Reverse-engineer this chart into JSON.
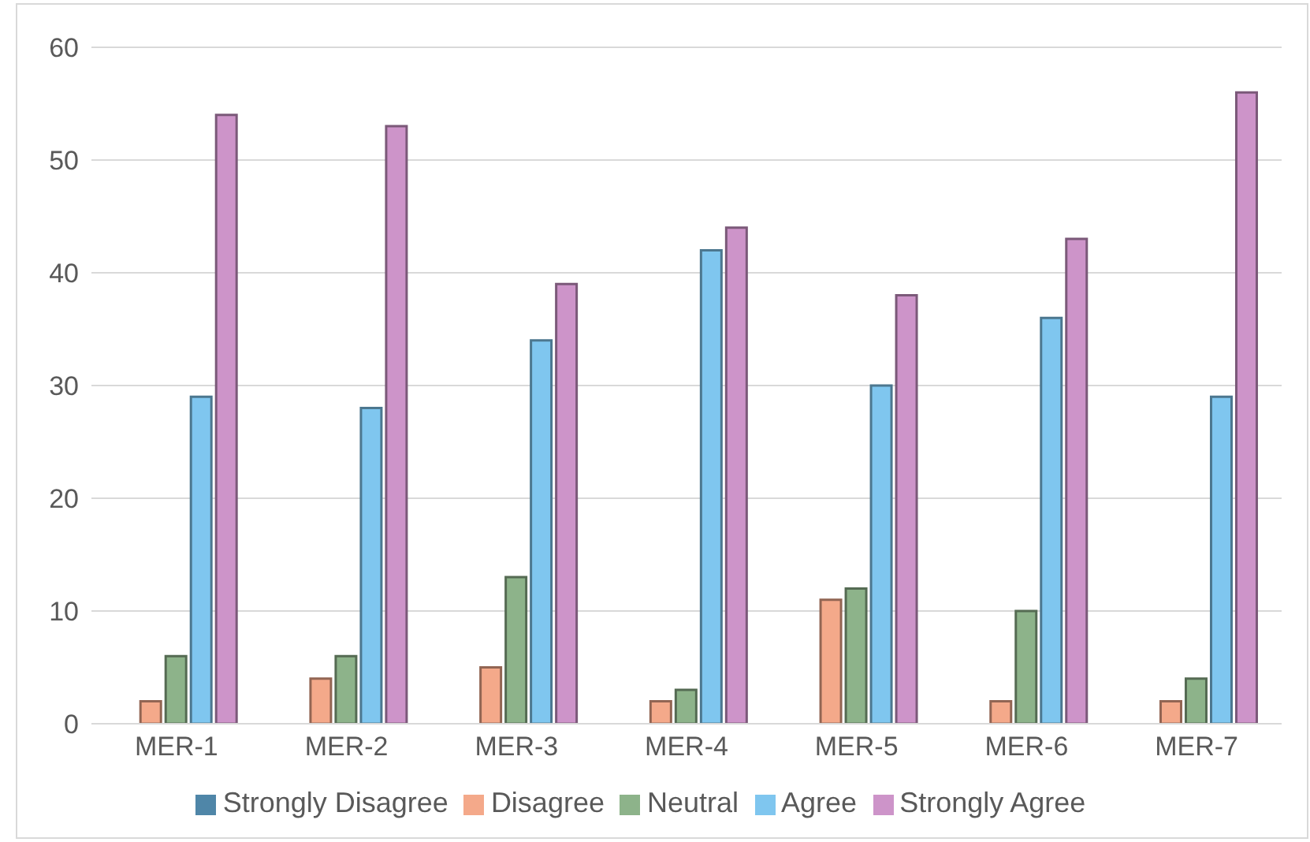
{
  "chart_data": {
    "type": "bar",
    "categories": [
      "MER-1",
      "MER-2",
      "MER-3",
      "MER-4",
      "MER-5",
      "MER-6",
      "MER-7"
    ],
    "series": [
      {
        "name": "Strongly Disagree",
        "color": "#4f86a8",
        "values": [
          0,
          0,
          0,
          0,
          0,
          0,
          0
        ]
      },
      {
        "name": "Disagree",
        "color": "#f4a98a",
        "values": [
          2,
          4,
          5,
          2,
          11,
          2,
          2
        ]
      },
      {
        "name": "Neutral",
        "color": "#8db38a",
        "values": [
          6,
          6,
          13,
          3,
          12,
          10,
          4
        ]
      },
      {
        "name": "Agree",
        "color": "#7fc6ef",
        "values": [
          29,
          28,
          34,
          42,
          30,
          36,
          29
        ]
      },
      {
        "name": "Strongly Agree",
        "color": "#cd94c9",
        "values": [
          54,
          53,
          39,
          44,
          38,
          43,
          56
        ]
      }
    ],
    "ylim": [
      0,
      60
    ],
    "yticks": [
      0,
      10,
      20,
      30,
      40,
      50,
      60
    ],
    "grid": "y",
    "legend": "bottom"
  }
}
